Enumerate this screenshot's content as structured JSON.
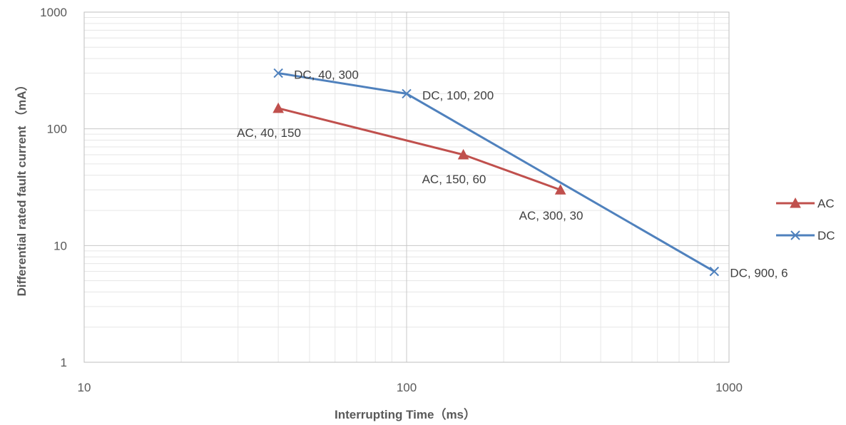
{
  "chart_data": {
    "type": "line",
    "xscale": "log",
    "yscale": "log",
    "xlim": [
      10,
      1000
    ],
    "ylim": [
      1,
      1000
    ],
    "xticks": [
      "10",
      "100",
      "1000"
    ],
    "yticks": [
      "1",
      "10",
      "100",
      "1000"
    ],
    "xlabel": "Interrupting Time（ms）",
    "ylabel": "Differential rated fault current （mA）",
    "grid": true,
    "legend_position": "right",
    "series": [
      {
        "name": "AC",
        "color": "#C0504D",
        "marker": "triangle",
        "x": [
          40,
          150,
          300
        ],
        "y": [
          150,
          60,
          30
        ],
        "labels": [
          "AC, 40, 150",
          "AC, 150, 60",
          "AC, 300, 30"
        ]
      },
      {
        "name": "DC",
        "color": "#4F81BD",
        "marker": "x",
        "x": [
          40,
          100,
          900
        ],
        "y": [
          300,
          200,
          6
        ],
        "labels": [
          "DC, 40, 300",
          "DC, 100, 200",
          "DC, 900, 6"
        ]
      }
    ]
  }
}
